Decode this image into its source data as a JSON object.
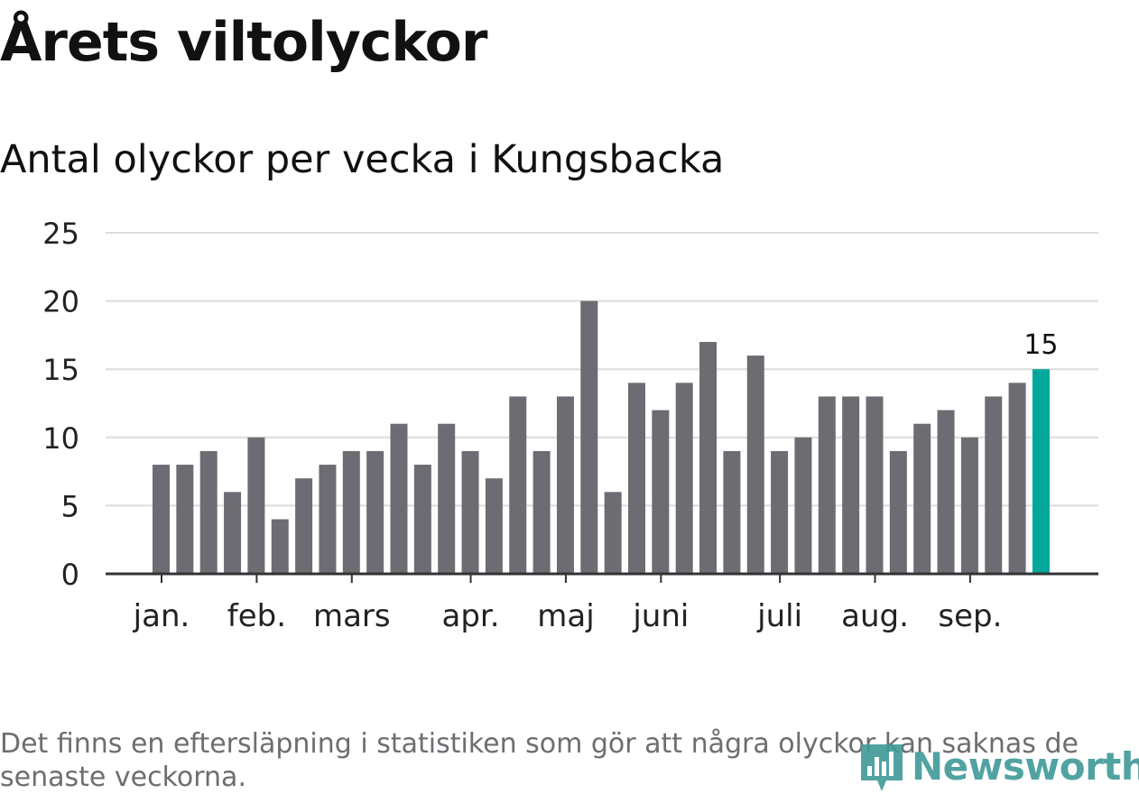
{
  "title": "Årets viltolyckor",
  "subtitle": "Antal olyckor per vecka i Kungsbacka",
  "footnote": "Det finns en eftersläpning i statistiken som gör att några olyckor kan saknas de senaste veckorna.",
  "logo": {
    "text": "Newsworthy",
    "icon": "bar-chart-logo-icon",
    "color": "#3f9a98"
  },
  "chart_data": {
    "type": "bar",
    "ylim": [
      0,
      25
    ],
    "yticks": [
      0,
      5,
      10,
      15,
      20,
      25
    ],
    "grid": true,
    "values": [
      8,
      8,
      9,
      6,
      10,
      4,
      7,
      8,
      9,
      9,
      11,
      8,
      11,
      9,
      7,
      13,
      9,
      13,
      20,
      6,
      14,
      12,
      14,
      17,
      9,
      16,
      9,
      10,
      13,
      13,
      13,
      9,
      11,
      12,
      10,
      13,
      14,
      15
    ],
    "month_labels": [
      {
        "label": "jan.",
        "at_bar": 0.5
      },
      {
        "label": "feb.",
        "at_bar": 4.5
      },
      {
        "label": "mars",
        "at_bar": 8.5
      },
      {
        "label": "apr.",
        "at_bar": 13.5
      },
      {
        "label": "maj",
        "at_bar": 17.5
      },
      {
        "label": "juni",
        "at_bar": 21.5
      },
      {
        "label": "juli",
        "at_bar": 26.5
      },
      {
        "label": "aug.",
        "at_bar": 30.5
      },
      {
        "label": "sep.",
        "at_bar": 34.5
      }
    ],
    "highlight": {
      "index": 37,
      "label": "15"
    },
    "colors": {
      "bar": "#6d6c72",
      "highlight": "#00a79a",
      "grid": "#dcdcdc",
      "axis": "#333333"
    }
  }
}
